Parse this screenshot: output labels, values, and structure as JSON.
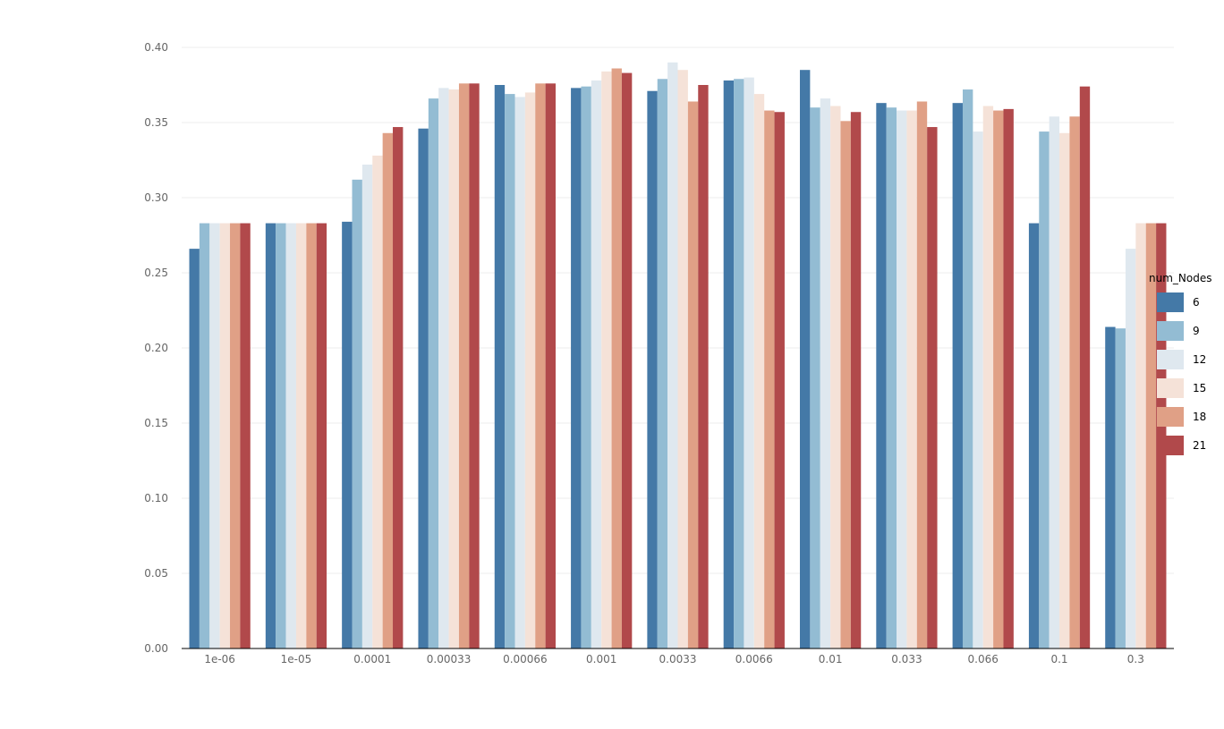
{
  "chart_data": {
    "type": "bar",
    "title": "",
    "xlabel": "",
    "ylabel": "",
    "ylim": [
      0,
      0.4
    ],
    "yticks": [
      "0.00",
      "0.05",
      "0.10",
      "0.15",
      "0.20",
      "0.25",
      "0.30",
      "0.35",
      "0.40"
    ],
    "categories": [
      "1e-06",
      "1e-05",
      "0.0001",
      "0.00033",
      "0.00066",
      "0.001",
      "0.0033",
      "0.0066",
      "0.01",
      "0.033",
      "0.066",
      "0.1",
      "0.3"
    ],
    "grid": "horizontal",
    "legend": {
      "title": "num_Nodes",
      "placement": "right"
    },
    "series": [
      {
        "name": "6",
        "color": "#4479a7",
        "values": [
          0.266,
          0.283,
          0.284,
          0.346,
          0.375,
          0.373,
          0.371,
          0.378,
          0.385,
          0.363,
          0.363,
          0.283,
          0.214
        ]
      },
      {
        "name": "9",
        "color": "#93bcd3",
        "values": [
          0.283,
          0.283,
          0.312,
          0.366,
          0.369,
          0.374,
          0.379,
          0.379,
          0.36,
          0.36,
          0.372,
          0.344,
          0.213
        ]
      },
      {
        "name": "12",
        "color": "#dfe8ef",
        "values": [
          0.283,
          0.283,
          0.322,
          0.373,
          0.367,
          0.378,
          0.39,
          0.38,
          0.366,
          0.358,
          0.344,
          0.354,
          0.266
        ]
      },
      {
        "name": "15",
        "color": "#f5e2d8",
        "values": [
          0.283,
          0.283,
          0.328,
          0.372,
          0.37,
          0.384,
          0.385,
          0.369,
          0.361,
          0.358,
          0.361,
          0.343,
          0.283
        ]
      },
      {
        "name": "18",
        "color": "#e0a086",
        "values": [
          0.283,
          0.283,
          0.343,
          0.376,
          0.376,
          0.386,
          0.364,
          0.358,
          0.351,
          0.364,
          0.358,
          0.354,
          0.283
        ]
      },
      {
        "name": "21",
        "color": "#b1494b",
        "values": [
          0.283,
          0.283,
          0.347,
          0.376,
          0.376,
          0.383,
          0.375,
          0.357,
          0.357,
          0.347,
          0.359,
          0.374,
          0.283
        ]
      }
    ]
  }
}
